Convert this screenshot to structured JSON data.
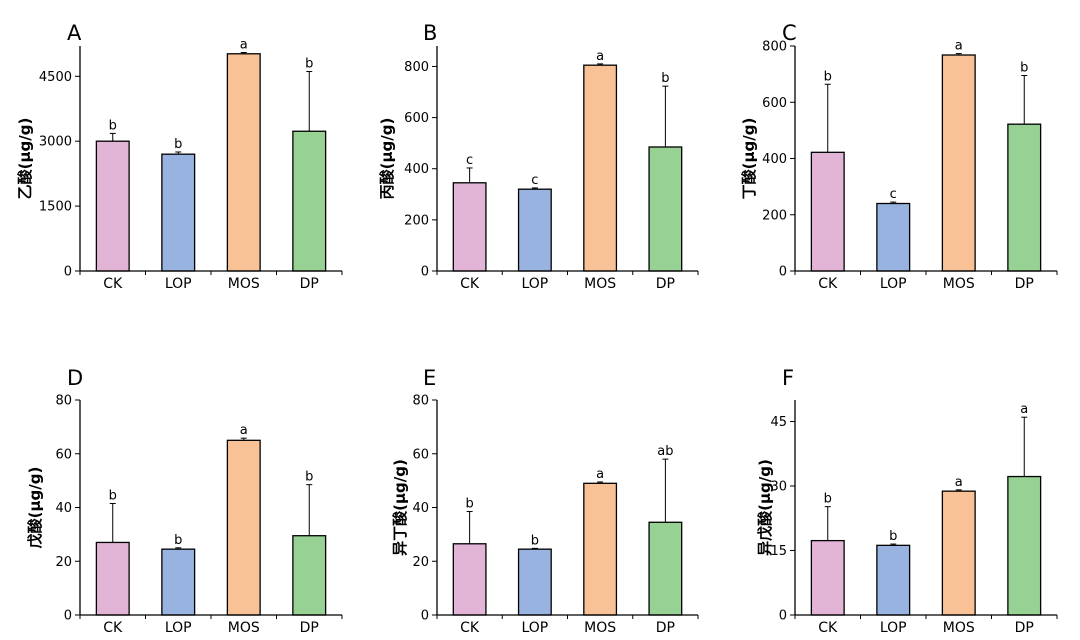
{
  "colors": {
    "CK": "#e2b4d6",
    "LOP": "#98b3df",
    "MOS": "#f8c296",
    "DP": "#98d194"
  },
  "chart_data": [
    {
      "type": "bar",
      "panel": "A",
      "ylabel": "乙酸(μg/g)",
      "categories": [
        "CK",
        "LOP",
        "MOS",
        "DP"
      ],
      "values": [
        3000,
        2700,
        5020,
        3230
      ],
      "errors": [
        180,
        50,
        30,
        1380
      ],
      "significance": [
        "b",
        "b",
        "a",
        "b"
      ],
      "ylim": [
        0,
        5200
      ],
      "yticks": [
        0,
        1500,
        3000,
        4500
      ]
    },
    {
      "type": "bar",
      "panel": "B",
      "ylabel": "丙酸(μg/g)",
      "categories": [
        "CK",
        "LOP",
        "MOS",
        "DP"
      ],
      "values": [
        345,
        320,
        805,
        485
      ],
      "errors": [
        58,
        5,
        5,
        238
      ],
      "significance": [
        "c",
        "c",
        "a",
        "b"
      ],
      "ylim": [
        0,
        880
      ],
      "yticks": [
        0,
        200,
        400,
        600,
        800
      ]
    },
    {
      "type": "bar",
      "panel": "C",
      "ylabel": "丁酸(μg/g)",
      "categories": [
        "CK",
        "LOP",
        "MOS",
        "DP"
      ],
      "values": [
        422,
        240,
        768,
        522
      ],
      "errors": [
        242,
        5,
        5,
        173
      ],
      "significance": [
        "b",
        "c",
        "a",
        "b"
      ],
      "ylim": [
        0,
        800
      ],
      "yticks": [
        0,
        200,
        400,
        600,
        800
      ]
    },
    {
      "type": "bar",
      "panel": "D",
      "ylabel": "戊酸(μg/g)",
      "categories": [
        "CK",
        "LOP",
        "MOS",
        "DP"
      ],
      "values": [
        27,
        24.5,
        65,
        29.5
      ],
      "errors": [
        14.5,
        0.5,
        0.8,
        19
      ],
      "significance": [
        "b",
        "b",
        "a",
        "b"
      ],
      "ylim": [
        0,
        80
      ],
      "yticks": [
        0,
        20,
        40,
        60,
        80
      ]
    },
    {
      "type": "bar",
      "panel": "E",
      "ylabel": "异丁酸(μg/g)",
      "categories": [
        "CK",
        "LOP",
        "MOS",
        "DP"
      ],
      "values": [
        26.5,
        24.5,
        49,
        34.5
      ],
      "errors": [
        12,
        0.3,
        0.5,
        23.5
      ],
      "significance": [
        "b",
        "b",
        "a",
        "ab"
      ],
      "ylim": [
        0,
        80
      ],
      "yticks": [
        0,
        20,
        40,
        60,
        80
      ]
    },
    {
      "type": "bar",
      "panel": "F",
      "ylabel": "异戊酸(μg/g)",
      "categories": [
        "CK",
        "LOP",
        "MOS",
        "DP"
      ],
      "values": [
        17.3,
        16.2,
        28.8,
        32.2
      ],
      "errors": [
        7.9,
        0.3,
        0.3,
        13.8
      ],
      "significance": [
        "b",
        "b",
        "a",
        "a"
      ],
      "ylim": [
        0,
        50
      ],
      "yticks": [
        0,
        15,
        30,
        45
      ]
    }
  ]
}
